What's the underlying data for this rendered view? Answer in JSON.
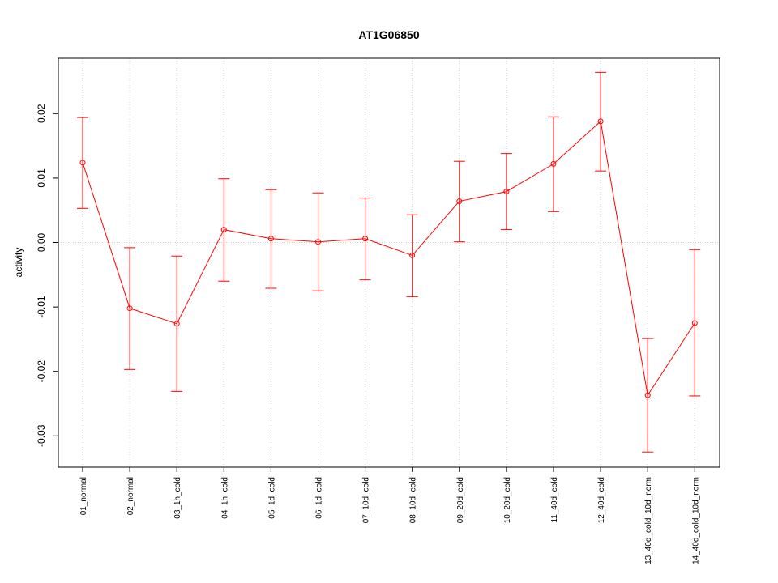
{
  "chart_data": {
    "type": "line",
    "title": "AT1G06850",
    "xlabel": "",
    "ylabel": "activity",
    "ylim": [
      -0.035,
      0.0285
    ],
    "yticks": [
      -0.03,
      -0.02,
      -0.01,
      0.0,
      0.01,
      0.02
    ],
    "ytick_labels": [
      "-0.03",
      "-0.02",
      "-0.01",
      "0.00",
      "0.01",
      "0.02"
    ],
    "grid": true,
    "color": "#ff0000",
    "categories": [
      "01_normal",
      "02_normal",
      "03_1h_cold",
      "04_1h_cold",
      "05_1d_cold",
      "06_1d_cold",
      "07_10d_cold",
      "08_10d_cold",
      "09_20d_cold",
      "10_20d_cold",
      "11_40d_cold",
      "12_40d_cold",
      "13_40d_cold_10d_norm",
      "14_40d_cold_10d_norm"
    ],
    "values": [
      0.0124,
      -0.0102,
      -0.0126,
      0.002,
      0.0006,
      0.0001,
      0.0006,
      -0.002,
      0.0064,
      0.0079,
      0.0122,
      0.0188,
      -0.0237,
      -0.0125
    ],
    "err_lower": [
      0.0053,
      -0.0197,
      -0.0231,
      -0.006,
      -0.0071,
      -0.0075,
      -0.0058,
      -0.0084,
      0.0001,
      0.002,
      0.0048,
      0.0111,
      -0.0325,
      -0.0238
    ],
    "err_upper": [
      0.0194,
      -0.0008,
      -0.0021,
      0.0099,
      0.0082,
      0.0077,
      0.0069,
      0.0043,
      0.0126,
      0.0138,
      0.0195,
      0.0264,
      -0.0149,
      -0.0011
    ]
  }
}
